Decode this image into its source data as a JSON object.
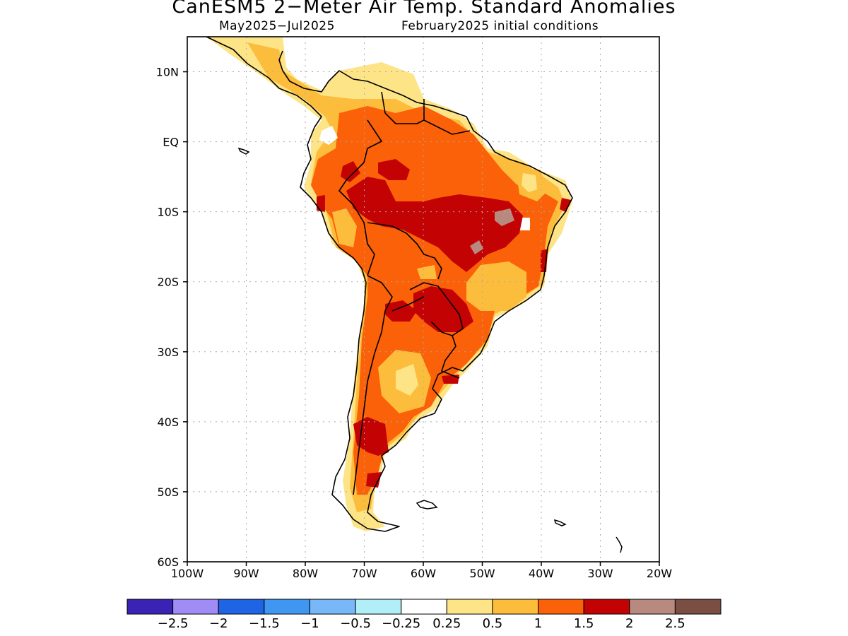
{
  "title": "CanESM5 2−Meter Air Temp. Standard Anomalies",
  "subtitle_left": "May2025−Jul2025",
  "subtitle_right": "February2025 initial conditions",
  "map": {
    "lon_range": [
      -100,
      -20
    ],
    "lat_range": [
      -60,
      15
    ],
    "x_ticks": [
      "100W",
      "90W",
      "80W",
      "70W",
      "60W",
      "50W",
      "40W",
      "30W",
      "20W"
    ],
    "y_ticks": [
      "10N",
      "EQ",
      "10S",
      "20S",
      "30S",
      "40S",
      "50S",
      "60S"
    ],
    "grid": "dotted"
  },
  "colorbar": {
    "colors": [
      "#3a22b5",
      "#9f8cf5",
      "#1f64e4",
      "#3f97f2",
      "#78b7f8",
      "#b2eef8",
      "#ffffff",
      "#fde487",
      "#fdbd3c",
      "#fb6108",
      "#c30204",
      "#b88a7f",
      "#7a4e42"
    ],
    "labels": [
      "−2.5",
      "−2",
      "−1.5",
      "−1",
      "−0.5",
      "−0.25",
      "0.25",
      "0.5",
      "1",
      "1.5",
      "2",
      "2.5"
    ]
  }
}
